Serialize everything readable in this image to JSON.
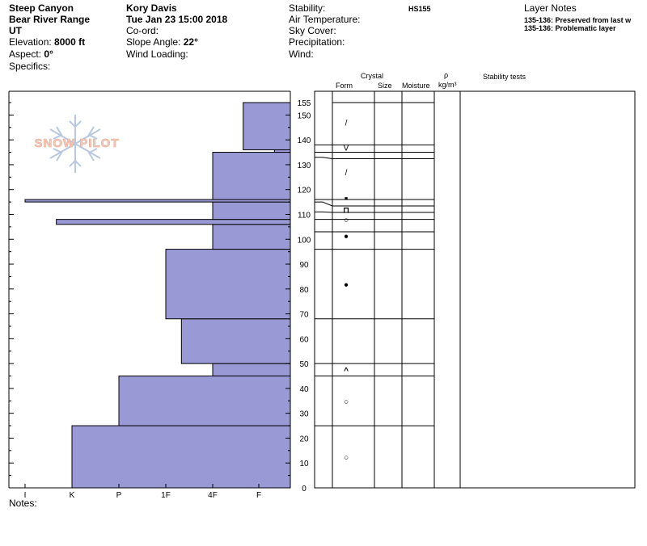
{
  "header": {
    "location": "Steep Canyon",
    "range": "Bear River Range",
    "state": "UT",
    "elevation_label": "Elevation:",
    "elevation_value": "8000 ft",
    "aspect_label": "Aspect:",
    "aspect_value": "0°",
    "specifics_label": "Specifics:",
    "observer": "Kory Davis",
    "datetime": "Tue Jan 23 15:00 2018",
    "coord_label": "Co-ord:",
    "slope_label": "Slope Angle:",
    "slope_value": "22°",
    "wind_loading_label": "Wind Loading:",
    "stability_label": "Stability:",
    "air_temp_label": "Air Temperature:",
    "sky_cover_label": "Sky Cover:",
    "precip_label": "Precipitation:",
    "wind_label": "Wind:",
    "hs": "HS155",
    "layer_notes_title": "Layer Notes",
    "layer_notes": [
      "135-136: Preserved from last w",
      "135-136: Problematic layer"
    ],
    "notes_label": "Notes:"
  },
  "logo": {
    "text": "SNOW PILOT",
    "color": "#f0c8b8",
    "icon": "snowflake-icon"
  },
  "columns": {
    "crystal": "Crystal",
    "form": "Form",
    "size": "Size",
    "moisture": "Moisture",
    "rho": "ρ",
    "density_unit": "kg/m³",
    "stability_tests": "Stability tests"
  },
  "colors": {
    "hardness_fill": "#9999d6",
    "hardness_stroke": "#000000"
  },
  "chart_data": {
    "type": "bar",
    "orientation": "horizontal",
    "description_axis_x": [
      "I",
      "K",
      "P",
      "1F",
      "4F",
      "F"
    ],
    "y_ticks": [
      0,
      10,
      20,
      30,
      40,
      50,
      60,
      70,
      80,
      90,
      100,
      110,
      120,
      130,
      140,
      150,
      155
    ],
    "ylim": [
      0,
      155
    ],
    "hardness_profile": [
      {
        "bottom": 0,
        "top": 25,
        "hardness": "K"
      },
      {
        "bottom": 25,
        "top": 45,
        "hardness": "P"
      },
      {
        "bottom": 45,
        "top": 50,
        "hardness": "4F"
      },
      {
        "bottom": 50,
        "top": 68,
        "hardness": "1F-"
      },
      {
        "bottom": 68,
        "top": 96,
        "hardness": "1F"
      },
      {
        "bottom": 96,
        "top": 106,
        "hardness": "4F"
      },
      {
        "bottom": 106,
        "top": 108,
        "hardness": "K+"
      },
      {
        "bottom": 108,
        "top": 115,
        "hardness": "4F"
      },
      {
        "bottom": 115,
        "top": 116,
        "hardness": "I"
      },
      {
        "bottom": 116,
        "top": 135,
        "hardness": "4F"
      },
      {
        "bottom": 135,
        "top": 136,
        "hardness": "F-"
      },
      {
        "bottom": 136,
        "top": 155,
        "hardness": "F+"
      }
    ],
    "layer_boundaries": [
      0,
      25,
      45,
      50,
      68,
      96,
      103,
      108,
      111,
      115,
      116,
      133,
      135,
      138,
      155
    ],
    "grain_forms": [
      {
        "height": 12.5,
        "symbol": "○"
      },
      {
        "height": 35,
        "symbol": "○"
      },
      {
        "height": 47.5,
        "symbol": "^"
      },
      {
        "height": 82,
        "symbol": "●"
      },
      {
        "height": 101.5,
        "symbol": "●"
      },
      {
        "height": 108,
        "symbol": "○"
      },
      {
        "height": 112,
        "symbol": "⊓"
      },
      {
        "height": 117,
        "symbol": "■"
      },
      {
        "height": 127,
        "symbol": "/"
      },
      {
        "height": 137,
        "symbol": "V"
      },
      {
        "height": 147,
        "symbol": "/"
      }
    ]
  }
}
